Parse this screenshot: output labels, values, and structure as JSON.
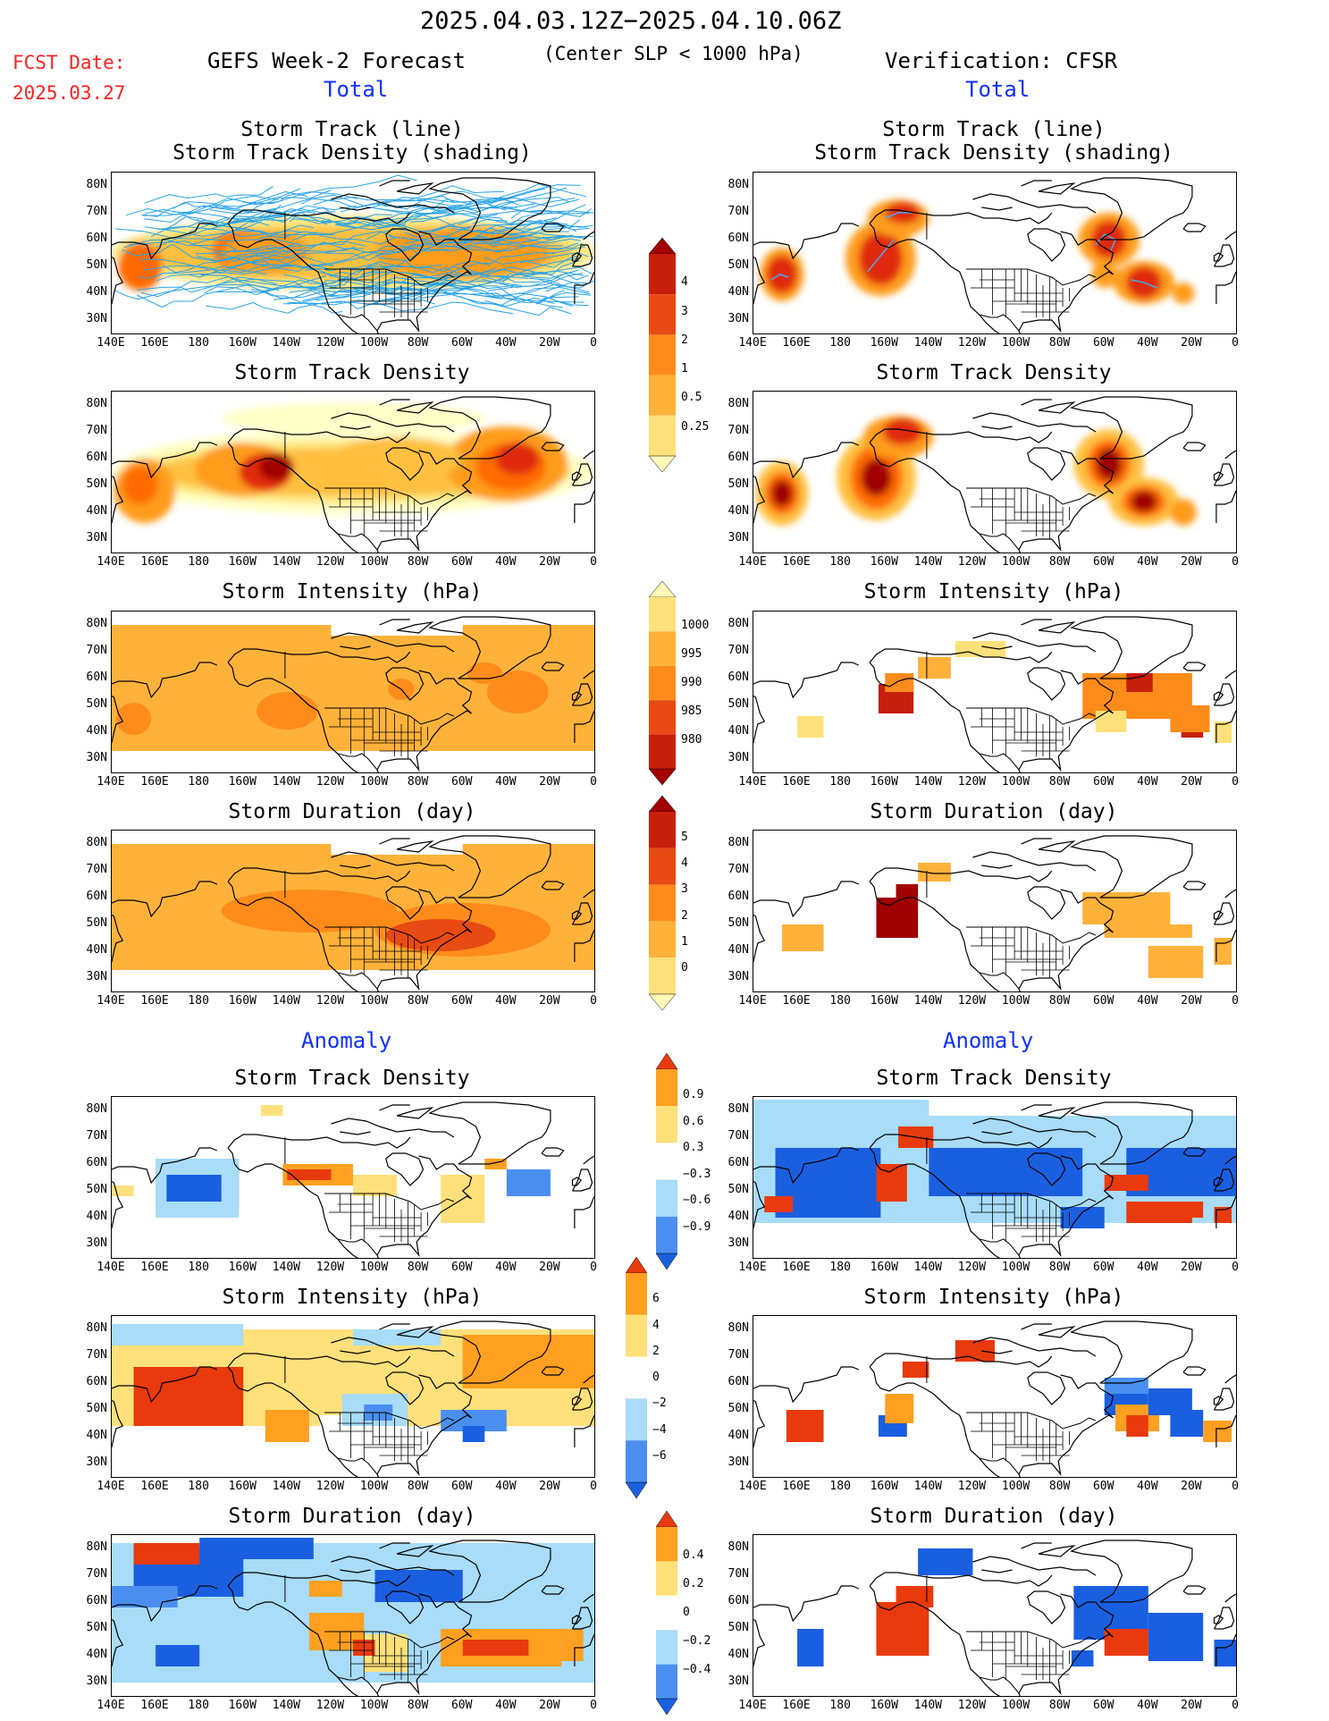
{
  "header": {
    "date_range": "2025.04.03.12Z−2025.04.10.06Z",
    "fcst_label": "FCST Date:",
    "fcst_date": "2025.03.27",
    "left_title": "GEFS Week-2 Forecast",
    "center_note": "(Center SLP < 1000 hPa)",
    "right_title": "Verification: CFSR",
    "total_label": "Total",
    "anomaly_label": "Anomaly"
  },
  "colors": {
    "forecast_red": "#ff2020",
    "section_blue": "#1030ff",
    "track_blue": "#29a3e6"
  },
  "panels": {
    "track_title_line1": "Storm Track (line)",
    "track_title_line2": "Storm Track Density (shading)",
    "density_title": "Storm Track Density",
    "intensity_title": "Storm Intensity (hPa)",
    "duration_title": "Storm Duration (day)"
  },
  "axes": {
    "lat_labels": [
      "80N",
      "70N",
      "60N",
      "50N",
      "40N",
      "30N"
    ],
    "lon_labels": [
      "140E",
      "160E",
      "180",
      "160W",
      "140W",
      "120W",
      "100W",
      "80W",
      "60W",
      "40W",
      "20W",
      "0"
    ]
  },
  "colorbars": {
    "density": [
      "4",
      "3",
      "2",
      "1",
      "0.5",
      "0.25"
    ],
    "intensity": [
      "1000",
      "995",
      "990",
      "985",
      "980"
    ],
    "duration": [
      "5",
      "4",
      "3",
      "2",
      "1",
      "0"
    ],
    "density_anom": [
      "0.9",
      "0.6",
      "0.3",
      "−0.3",
      "−0.6",
      "−0.9"
    ],
    "intensity_anom": [
      "6",
      "4",
      "2",
      "0",
      "−2",
      "−4",
      "−6"
    ],
    "duration_anom": [
      "0.4",
      "0.2",
      "0",
      "−0.2",
      "−0.4"
    ]
  },
  "legend_colors": {
    "sequential": [
      "#fff8b8",
      "#ffe07a",
      "#ffb23a",
      "#ff8c1a",
      "#e84a14",
      "#c81e0c",
      "#a00000"
    ],
    "diverging": [
      "#1a5fe0",
      "#4a8ff0",
      "#a8dcf8",
      "#ffffff",
      "#ffe07a",
      "#ffa020",
      "#e83a0c"
    ]
  }
}
